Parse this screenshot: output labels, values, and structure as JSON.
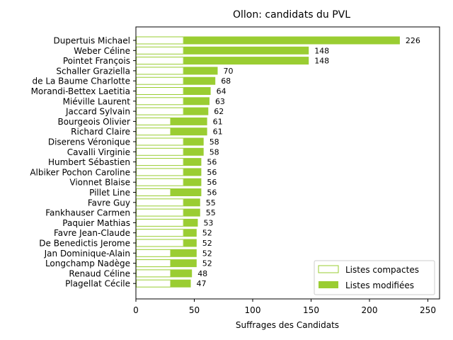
{
  "chart_data": {
    "type": "bar",
    "orientation": "horizontal",
    "stacked": true,
    "title": "Ollon: candidats du PVL",
    "xlabel": "Suffrages des Candidats",
    "ylabel": "",
    "xlim": [
      0,
      260
    ],
    "xticks": [
      0,
      50,
      100,
      150,
      200,
      250
    ],
    "legend_position": "bottom-right",
    "colors": {
      "compact_edge": "#9ACD32",
      "modified_fill": "#9ACD32"
    },
    "categories": [
      "Dupertuis Michael",
      "Weber Céline",
      "Pointet François",
      "Schaller Graziella",
      "de La Baume Charlotte",
      "Morandi-Bettex Laetitia",
      "Miéville Laurent",
      "Jaccard Sylvain",
      "Bourgeois Olivier",
      "Richard Claire",
      "Diserens Véronique",
      "Cavalli Virginie",
      "Humbert Sébastien",
      "Albiker Pochon Caroline",
      "Vionnet Blaise",
      "Pillet Line",
      "Favre Guy",
      "Fankhauser Carmen",
      "Paquier Mathias",
      "Favre Jean-Claude",
      "De Benedictis Jerome",
      "Jan Dominique-Alain",
      "Longchamp Nadège",
      "Renaud Céline",
      "Plagellat Cécile"
    ],
    "series": [
      {
        "name": "Listes compactes",
        "values": [
          41,
          41,
          41,
          41,
          41,
          41,
          41,
          41,
          30,
          30,
          41,
          41,
          41,
          41,
          41,
          30,
          41,
          41,
          41,
          41,
          41,
          30,
          30,
          30,
          30
        ]
      },
      {
        "name": "Listes modifiées",
        "values": [
          185,
          107,
          107,
          29,
          27,
          23,
          22,
          21,
          31,
          31,
          17,
          17,
          15,
          15,
          15,
          26,
          14,
          14,
          12,
          11,
          11,
          22,
          22,
          18,
          17
        ]
      }
    ],
    "totals": [
      226,
      148,
      148,
      70,
      68,
      64,
      63,
      62,
      61,
      61,
      58,
      58,
      56,
      56,
      56,
      56,
      55,
      55,
      53,
      52,
      52,
      52,
      52,
      48,
      47
    ]
  }
}
